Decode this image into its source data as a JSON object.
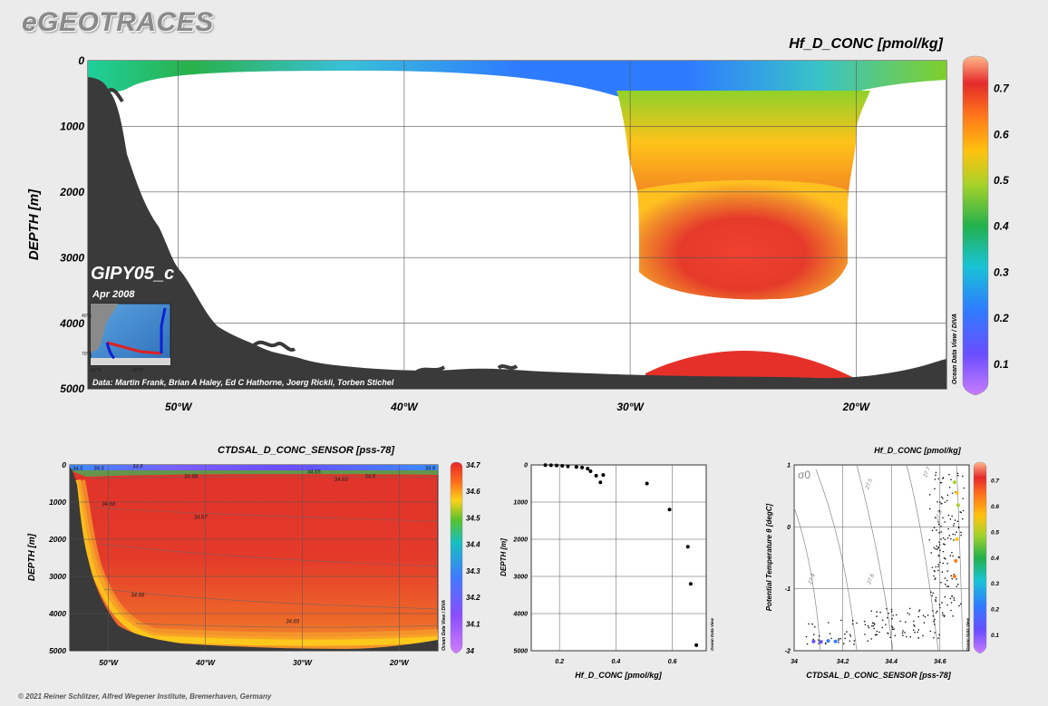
{
  "logo": "eGEOTRACES",
  "copyright": "© 2021 Reiner Schlitzer, Alfred Wegener Institute, Bremerhaven, Germany",
  "colors": {
    "land": "#3a3a3a",
    "background": "#ebebeb",
    "plot_bg": "#ffffff",
    "grid": "#555555"
  },
  "chart_data": [
    {
      "id": "main-section",
      "type": "heatmap",
      "title": "Hf_D_CONC [pmol/kg]",
      "ylabel": "DEPTH [m]",
      "xlabel": "",
      "x_ticks": [
        "50°W",
        "40°W",
        "30°W",
        "20°W"
      ],
      "x_tick_values": [
        -50,
        -40,
        -30,
        -20
      ],
      "xlim": [
        -54,
        -16
      ],
      "y_ticks": [
        "0",
        "1000",
        "2000",
        "3000",
        "4000",
        "5000"
      ],
      "y_tick_values": [
        0,
        1000,
        2000,
        3000,
        4000,
        5000
      ],
      "ylim": [
        0,
        5000
      ],
      "colorbar_ticks": [
        "0.1",
        "0.2",
        "0.3",
        "0.4",
        "0.5",
        "0.6",
        "0.7"
      ],
      "colorbar_values": [
        0.1,
        0.2,
        0.3,
        0.4,
        0.5,
        0.6,
        0.7
      ],
      "colorbar_range": [
        0.04,
        0.76
      ],
      "colorbar_label": "Ocean Data View / DIVA",
      "grid": true,
      "inset_title": "GIPY05_c",
      "inset_subtitle": "Apr 2008",
      "inset_map_labels": [
        "40°S",
        "70°S",
        "80°W",
        "40°W"
      ],
      "credit": "Data: Martin Frank, Brian A Haley, Ed C Hathorne, Joerg Rickli, Torben Stichel"
    },
    {
      "id": "salinity-section",
      "type": "heatmap",
      "title": "CTDSAL_D_CONC_SENSOR [pss-78]",
      "ylabel": "DEPTH [m]",
      "xlabel": "",
      "x_ticks": [
        "50°W",
        "40°W",
        "30°W",
        "20°W"
      ],
      "x_tick_values": [
        -50,
        -40,
        -30,
        -20
      ],
      "xlim": [
        -54,
        -16
      ],
      "y_ticks": [
        "0",
        "1000",
        "2000",
        "3000",
        "4000",
        "5000"
      ],
      "y_tick_values": [
        0,
        1000,
        2000,
        3000,
        4000,
        5000
      ],
      "ylim": [
        0,
        5000
      ],
      "colorbar_ticks": [
        "34",
        "34.1",
        "34.2",
        "34.3",
        "34.4",
        "34.5",
        "34.6",
        "34.7"
      ],
      "colorbar_values": [
        34,
        34.1,
        34.2,
        34.3,
        34.4,
        34.5,
        34.6,
        34.7
      ],
      "colorbar_range": [
        34,
        34.7
      ],
      "colorbar_label": "Ocean Data View / DIVA",
      "contour_labels": [
        {
          "text": "34.5",
          "x": -53.2,
          "y": 150
        },
        {
          "text": "34.6",
          "x": -51.0,
          "y": 130
        },
        {
          "text": "34.6",
          "x": -47.0,
          "y": 80
        },
        {
          "text": "34.68",
          "x": -41.5,
          "y": 350
        },
        {
          "text": "34.65",
          "x": -28.8,
          "y": 230
        },
        {
          "text": "34.69",
          "x": -26.0,
          "y": 440
        },
        {
          "text": "34.68",
          "x": -50.0,
          "y": 1100
        },
        {
          "text": "34.67",
          "x": -40.5,
          "y": 1450
        },
        {
          "text": "34.66",
          "x": -47.0,
          "y": 3550
        },
        {
          "text": "34.65",
          "x": -31.0,
          "y": 4250
        },
        {
          "text": "34.6",
          "x": -23.0,
          "y": 350
        },
        {
          "text": "34.6",
          "x": -16.8,
          "y": 130
        }
      ]
    },
    {
      "id": "profile",
      "type": "scatter",
      "title": "",
      "xlabel": "Hf_D_CONC [pmol/kg]",
      "ylabel": "DEPTH [m]",
      "x_ticks": [
        "0.2",
        "0.4",
        "0.6"
      ],
      "x_tick_values": [
        0.2,
        0.4,
        0.6
      ],
      "xlim": [
        0.1,
        0.72
      ],
      "y_ticks": [
        "0",
        "1000",
        "2000",
        "3000",
        "4000",
        "5000"
      ],
      "y_tick_values": [
        0,
        1000,
        2000,
        3000,
        4000,
        5000
      ],
      "ylim": [
        0,
        5000
      ],
      "side_label": "Ocean Data View",
      "points": [
        {
          "x": 0.15,
          "y": 5
        },
        {
          "x": 0.17,
          "y": 10
        },
        {
          "x": 0.19,
          "y": 15
        },
        {
          "x": 0.21,
          "y": 25
        },
        {
          "x": 0.23,
          "y": 40
        },
        {
          "x": 0.26,
          "y": 55
        },
        {
          "x": 0.28,
          "y": 70
        },
        {
          "x": 0.3,
          "y": 100
        },
        {
          "x": 0.31,
          "y": 170
        },
        {
          "x": 0.33,
          "y": 290
        },
        {
          "x": 0.355,
          "y": 270
        },
        {
          "x": 0.345,
          "y": 470
        },
        {
          "x": 0.51,
          "y": 500
        },
        {
          "x": 0.59,
          "y": 1200
        },
        {
          "x": 0.655,
          "y": 2200
        },
        {
          "x": 0.665,
          "y": 3200
        },
        {
          "x": 0.685,
          "y": 4850
        }
      ]
    },
    {
      "id": "ts-diagram",
      "type": "scatter",
      "title": "Hf_D_CONC [pmol/kg]",
      "xlabel": "CTDSAL_D_CONC_SENSOR [pss-78]",
      "ylabel": "Potential Temperature θ [degC]",
      "x_ticks": [
        "34",
        "34.2",
        "34.4",
        "34.6"
      ],
      "x_tick_values": [
        34,
        34.2,
        34.4,
        34.6
      ],
      "xlim": [
        34,
        34.72
      ],
      "y_ticks": [
        "1",
        "0",
        "-1",
        "-2"
      ],
      "y_tick_values": [
        1,
        0,
        -1,
        -2
      ],
      "ylim": [
        -2,
        1
      ],
      "sigma_label": "σ0",
      "isopycnal_labels": [
        "27.4",
        "27.5",
        "27.6",
        "27.7",
        "27.8"
      ],
      "colorbar_ticks": [
        "0.1",
        "0.2",
        "0.3",
        "0.4",
        "0.5",
        "0.6",
        "0.7"
      ],
      "colorbar_values": [
        0.1,
        0.2,
        0.3,
        0.4,
        0.5,
        0.6,
        0.7
      ],
      "colorbar_range": [
        0.04,
        0.76
      ],
      "colorbar_label": "Ocean Data View",
      "colored_points": [
        {
          "x": 34.66,
          "y": 0.72,
          "v": 0.52
        },
        {
          "x": 34.67,
          "y": 0.55,
          "v": 0.6
        },
        {
          "x": 34.675,
          "y": 0.35,
          "v": 0.5
        },
        {
          "x": 34.665,
          "y": -0.55,
          "v": 0.64
        },
        {
          "x": 34.67,
          "y": -0.2,
          "v": 0.62
        },
        {
          "x": 34.66,
          "y": -0.8,
          "v": 0.66
        },
        {
          "x": 34.14,
          "y": -1.84,
          "v": 0.22
        },
        {
          "x": 34.11,
          "y": -1.86,
          "v": 0.19
        },
        {
          "x": 34.17,
          "y": -1.85,
          "v": 0.25
        },
        {
          "x": 34.08,
          "y": -1.85,
          "v": 0.17
        }
      ]
    }
  ]
}
